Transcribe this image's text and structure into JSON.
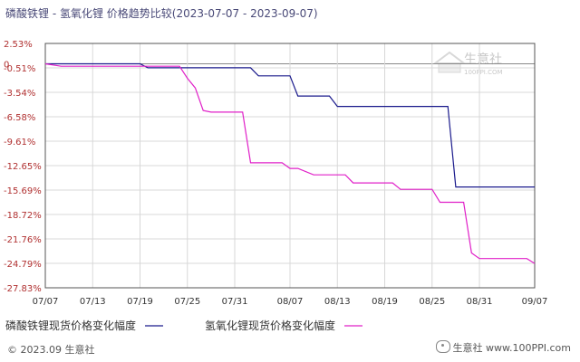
{
  "title": "磷酸铁锂 - 氢氧化锂 价格趋势比较(2023-07-07 - 2023-09-07)",
  "watermark": {
    "brand": "生意社",
    "url": "100PPI.COM"
  },
  "footer": {
    "copyright": "© 2023.09 生意社",
    "right": "生意社 www.100PPI.com"
  },
  "colors": {
    "series1": "#1a1a8c",
    "series2": "#e020c8",
    "ytick": "#b03030",
    "grid": "#d8d8d8",
    "axis": "#555555"
  },
  "chart_data": {
    "type": "line",
    "title": "磷酸铁锂 - 氢氧化锂 价格趋势比较(2023-07-07 - 2023-09-07)",
    "xlabel": "",
    "ylabel": "",
    "y_origin_label": "0",
    "yticks": [
      2.53,
      -0.51,
      -3.54,
      -6.58,
      -9.61,
      -12.65,
      -15.69,
      -18.72,
      -21.76,
      -24.79,
      -27.83
    ],
    "ytick_labels": [
      "2.53%",
      "-0.51%",
      "-3.54%",
      "-6.58%",
      "-9.61%",
      "-12.65%",
      "-15.69%",
      "-18.72%",
      "-21.76%",
      "-24.79%",
      "-27.83%"
    ],
    "ylim": [
      -27.83,
      2.53
    ],
    "xticks": [
      "2023-07-07",
      "2023-07-13",
      "2023-07-19",
      "2023-07-25",
      "2023-07-31",
      "2023-08-07",
      "2023-08-13",
      "2023-08-19",
      "2023-08-25",
      "2023-08-31",
      "2023-09-07"
    ],
    "xtick_labels": [
      "07/07",
      "07/13",
      "07/19",
      "07/25",
      "07/31",
      "08/07",
      "08/13",
      "08/19",
      "08/25",
      "08/31",
      "09/07"
    ],
    "xlim": [
      "2023-07-07",
      "2023-09-07"
    ],
    "grid": true,
    "legend_position": "bottom-left",
    "series": [
      {
        "name": "磷酸铁锂现货价格变化幅度",
        "x": [
          "2023-07-07",
          "2023-07-19",
          "2023-07-20",
          "2023-08-02",
          "2023-08-03",
          "2023-08-07",
          "2023-08-08",
          "2023-08-12",
          "2023-08-13",
          "2023-08-27",
          "2023-08-28",
          "2023-09-07"
        ],
        "y": [
          0.0,
          0.0,
          -0.5,
          -0.5,
          -1.5,
          -1.5,
          -4.0,
          -4.0,
          -5.3,
          -5.3,
          -15.3,
          -15.3
        ]
      },
      {
        "name": "氢氧化锂现货价格变化幅度",
        "x": [
          "2023-07-07",
          "2023-07-09",
          "2023-07-24",
          "2023-07-25",
          "2023-07-26",
          "2023-07-27",
          "2023-07-28",
          "2023-08-01",
          "2023-08-02",
          "2023-08-06",
          "2023-08-07",
          "2023-08-08",
          "2023-08-10",
          "2023-08-14",
          "2023-08-15",
          "2023-08-20",
          "2023-08-21",
          "2023-08-25",
          "2023-08-26",
          "2023-08-29",
          "2023-08-30",
          "2023-08-31",
          "2023-09-06",
          "2023-09-07"
        ],
        "y": [
          0.0,
          -0.3,
          -0.3,
          -1.8,
          -3.0,
          -5.8,
          -6.0,
          -6.0,
          -12.3,
          -12.3,
          -13.0,
          -13.0,
          -13.8,
          -13.8,
          -14.8,
          -14.8,
          -15.6,
          -15.6,
          -17.2,
          -17.2,
          -23.5,
          -24.2,
          -24.2,
          -24.8
        ]
      }
    ]
  }
}
